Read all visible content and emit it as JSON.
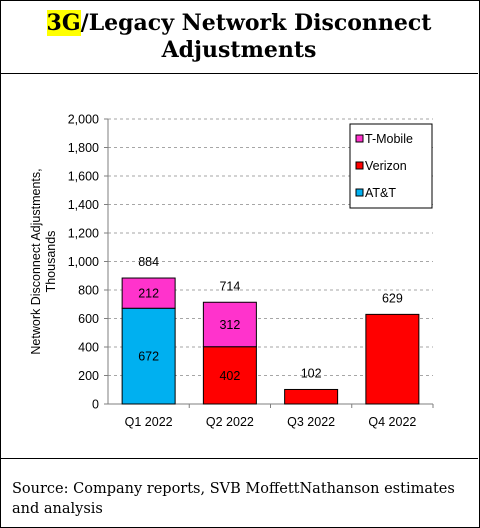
{
  "header": {
    "title_highlight": "3G",
    "title_rest": "/Legacy Network Disconnect",
    "title_line2": "Adjustments"
  },
  "source": "Source: Company reports, SVB MoffettNathanson estimates and analysis",
  "chart_data": {
    "type": "bar",
    "stacked": true,
    "categories": [
      "Q1 2022",
      "Q2 2022",
      "Q3 2022",
      "Q4 2022"
    ],
    "series": [
      {
        "name": "AT&T",
        "values": [
          672,
          0,
          0,
          0
        ],
        "color": "#00b0f0"
      },
      {
        "name": "Verizon",
        "values": [
          0,
          402,
          102,
          629
        ],
        "color": "#ff0000"
      },
      {
        "name": "T-Mobile",
        "values": [
          212,
          312,
          0,
          0
        ],
        "color": "#ff33cc"
      }
    ],
    "segment_labels": {
      "AT&T": [
        "672",
        "",
        "",
        ""
      ],
      "Verizon": [
        "",
        "402",
        "",
        ""
      ],
      "T-Mobile": [
        "212",
        "312",
        "",
        ""
      ]
    },
    "totals": [
      "884",
      "714",
      "102",
      "629"
    ],
    "ylabel": "Network Disconnect Adjustments, Thousands",
    "ylim": [
      0,
      2000
    ],
    "yticks": [
      "0",
      "200",
      "400",
      "600",
      "800",
      "1,000",
      "1,200",
      "1,400",
      "1,600",
      "1,800",
      "2,000"
    ],
    "legend_order": [
      "T-Mobile",
      "Verizon",
      "AT&T"
    ],
    "legend_position": "top-right",
    "grid": true
  }
}
